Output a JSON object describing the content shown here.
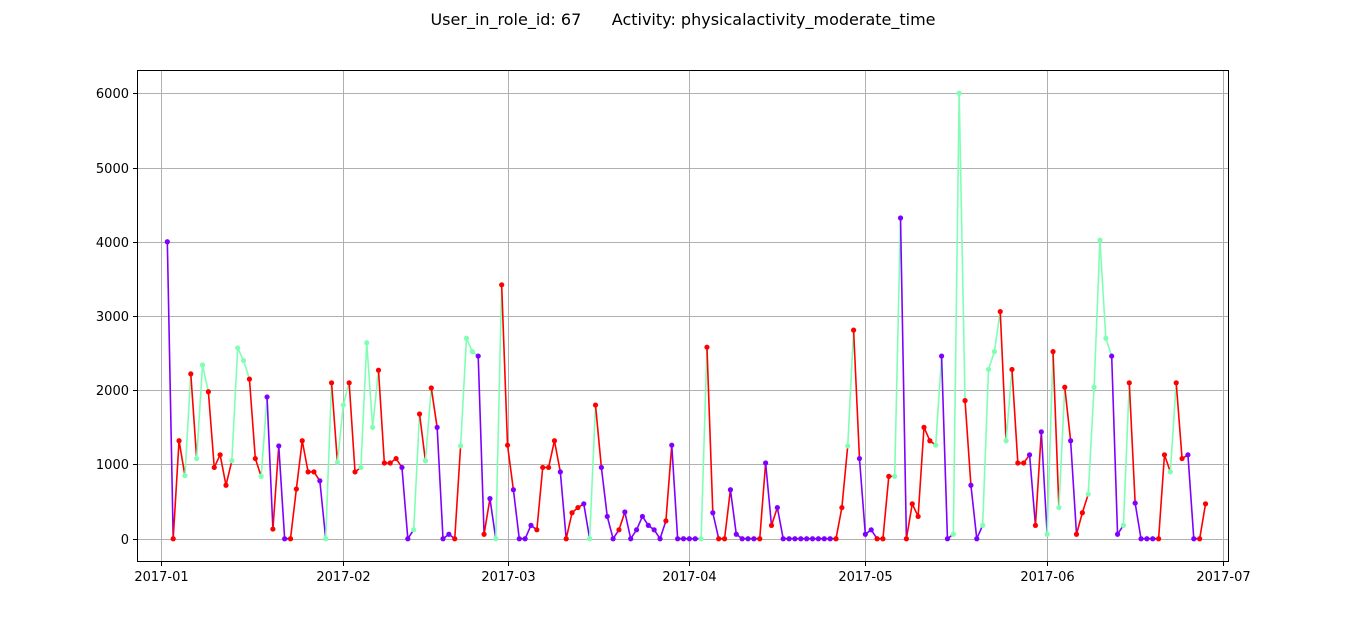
{
  "chart_data": {
    "type": "line",
    "title": "User_in_role_id: 67      Activity: physicalactivity_moderate_time",
    "xlabel": "",
    "ylabel": "",
    "grid": true,
    "xlim": [
      "2016-12-28",
      "2017-07-02"
    ],
    "ylim": [
      -300,
      6300
    ],
    "x_ticks": [
      "2017-01",
      "2017-02",
      "2017-03",
      "2017-04",
      "2017-05",
      "2017-06",
      "2017-07"
    ],
    "y_ticks": [
      0,
      1000,
      2000,
      3000,
      4000,
      5000,
      6000
    ],
    "colors": {
      "purple": "#8000ff",
      "red": "#ff0000",
      "green": "#80ffb4",
      "grid": "#b0b0b0"
    },
    "points": [
      {
        "x": "2017-01-02",
        "y": 4000,
        "c": "purple"
      },
      {
        "x": "2017-01-03",
        "y": 0,
        "c": "red"
      },
      {
        "x": "2017-01-04",
        "y": 1320,
        "c": "red"
      },
      {
        "x": "2017-01-05",
        "y": 850,
        "c": "green"
      },
      {
        "x": "2017-01-06",
        "y": 2220,
        "c": "red"
      },
      {
        "x": "2017-01-07",
        "y": 1080,
        "c": "green"
      },
      {
        "x": "2017-01-08",
        "y": 2340,
        "c": "green"
      },
      {
        "x": "2017-01-09",
        "y": 1980,
        "c": "red"
      },
      {
        "x": "2017-01-10",
        "y": 960,
        "c": "red"
      },
      {
        "x": "2017-01-11",
        "y": 1130,
        "c": "red"
      },
      {
        "x": "2017-01-12",
        "y": 720,
        "c": "red"
      },
      {
        "x": "2017-01-13",
        "y": 1050,
        "c": "green"
      },
      {
        "x": "2017-01-14",
        "y": 2570,
        "c": "green"
      },
      {
        "x": "2017-01-15",
        "y": 2400,
        "c": "green"
      },
      {
        "x": "2017-01-16",
        "y": 2150,
        "c": "red"
      },
      {
        "x": "2017-01-17",
        "y": 1080,
        "c": "red"
      },
      {
        "x": "2017-01-18",
        "y": 840,
        "c": "green"
      },
      {
        "x": "2017-01-19",
        "y": 1910,
        "c": "purple"
      },
      {
        "x": "2017-01-20",
        "y": 130,
        "c": "red"
      },
      {
        "x": "2017-01-21",
        "y": 1250,
        "c": "purple"
      },
      {
        "x": "2017-01-22",
        "y": 0,
        "c": "purple"
      },
      {
        "x": "2017-01-23",
        "y": 0,
        "c": "red"
      },
      {
        "x": "2017-01-24",
        "y": 670,
        "c": "red"
      },
      {
        "x": "2017-01-25",
        "y": 1320,
        "c": "red"
      },
      {
        "x": "2017-01-26",
        "y": 900,
        "c": "red"
      },
      {
        "x": "2017-01-27",
        "y": 900,
        "c": "red"
      },
      {
        "x": "2017-01-28",
        "y": 780,
        "c": "purple"
      },
      {
        "x": "2017-01-29",
        "y": 0,
        "c": "green"
      },
      {
        "x": "2017-01-30",
        "y": 2100,
        "c": "red"
      },
      {
        "x": "2017-01-31",
        "y": 1030,
        "c": "green"
      },
      {
        "x": "2017-02-01",
        "y": 1800,
        "c": "green"
      },
      {
        "x": "2017-02-02",
        "y": 2100,
        "c": "red"
      },
      {
        "x": "2017-02-03",
        "y": 900,
        "c": "red"
      },
      {
        "x": "2017-02-04",
        "y": 960,
        "c": "green"
      },
      {
        "x": "2017-02-05",
        "y": 2640,
        "c": "green"
      },
      {
        "x": "2017-02-06",
        "y": 1500,
        "c": "green"
      },
      {
        "x": "2017-02-07",
        "y": 2270,
        "c": "red"
      },
      {
        "x": "2017-02-08",
        "y": 1020,
        "c": "red"
      },
      {
        "x": "2017-02-09",
        "y": 1020,
        "c": "red"
      },
      {
        "x": "2017-02-10",
        "y": 1080,
        "c": "red"
      },
      {
        "x": "2017-02-11",
        "y": 960,
        "c": "purple"
      },
      {
        "x": "2017-02-12",
        "y": 0,
        "c": "purple"
      },
      {
        "x": "2017-02-13",
        "y": 120,
        "c": "green"
      },
      {
        "x": "2017-02-14",
        "y": 1680,
        "c": "red"
      },
      {
        "x": "2017-02-15",
        "y": 1050,
        "c": "green"
      },
      {
        "x": "2017-02-16",
        "y": 2030,
        "c": "red"
      },
      {
        "x": "2017-02-17",
        "y": 1500,
        "c": "purple"
      },
      {
        "x": "2017-02-18",
        "y": 0,
        "c": "purple"
      },
      {
        "x": "2017-02-19",
        "y": 60,
        "c": "purple"
      },
      {
        "x": "2017-02-20",
        "y": 0,
        "c": "red"
      },
      {
        "x": "2017-02-21",
        "y": 1250,
        "c": "green"
      },
      {
        "x": "2017-02-22",
        "y": 2700,
        "c": "green"
      },
      {
        "x": "2017-02-23",
        "y": 2520,
        "c": "green"
      },
      {
        "x": "2017-02-24",
        "y": 2460,
        "c": "purple"
      },
      {
        "x": "2017-02-25",
        "y": 60,
        "c": "red"
      },
      {
        "x": "2017-02-26",
        "y": 540,
        "c": "purple"
      },
      {
        "x": "2017-02-27",
        "y": 0,
        "c": "green"
      },
      {
        "x": "2017-02-28",
        "y": 3420,
        "c": "red"
      },
      {
        "x": "2017-03-01",
        "y": 1260,
        "c": "red"
      },
      {
        "x": "2017-03-02",
        "y": 660,
        "c": "purple"
      },
      {
        "x": "2017-03-03",
        "y": 0,
        "c": "purple"
      },
      {
        "x": "2017-03-04",
        "y": 0,
        "c": "purple"
      },
      {
        "x": "2017-03-05",
        "y": 180,
        "c": "purple"
      },
      {
        "x": "2017-03-06",
        "y": 120,
        "c": "red"
      },
      {
        "x": "2017-03-07",
        "y": 960,
        "c": "red"
      },
      {
        "x": "2017-03-08",
        "y": 960,
        "c": "red"
      },
      {
        "x": "2017-03-09",
        "y": 1320,
        "c": "red"
      },
      {
        "x": "2017-03-10",
        "y": 900,
        "c": "purple"
      },
      {
        "x": "2017-03-11",
        "y": 0,
        "c": "red"
      },
      {
        "x": "2017-03-12",
        "y": 350,
        "c": "red"
      },
      {
        "x": "2017-03-13",
        "y": 420,
        "c": "red"
      },
      {
        "x": "2017-03-14",
        "y": 470,
        "c": "purple"
      },
      {
        "x": "2017-03-15",
        "y": 0,
        "c": "green"
      },
      {
        "x": "2017-03-16",
        "y": 1800,
        "c": "red"
      },
      {
        "x": "2017-03-17",
        "y": 960,
        "c": "purple"
      },
      {
        "x": "2017-03-18",
        "y": 300,
        "c": "purple"
      },
      {
        "x": "2017-03-19",
        "y": 0,
        "c": "purple"
      },
      {
        "x": "2017-03-20",
        "y": 120,
        "c": "red"
      },
      {
        "x": "2017-03-21",
        "y": 360,
        "c": "purple"
      },
      {
        "x": "2017-03-22",
        "y": 0,
        "c": "purple"
      },
      {
        "x": "2017-03-23",
        "y": 120,
        "c": "purple"
      },
      {
        "x": "2017-03-24",
        "y": 300,
        "c": "purple"
      },
      {
        "x": "2017-03-25",
        "y": 180,
        "c": "purple"
      },
      {
        "x": "2017-03-26",
        "y": 120,
        "c": "purple"
      },
      {
        "x": "2017-03-27",
        "y": 0,
        "c": "purple"
      },
      {
        "x": "2017-03-28",
        "y": 240,
        "c": "red"
      },
      {
        "x": "2017-03-29",
        "y": 1260,
        "c": "purple"
      },
      {
        "x": "2017-03-30",
        "y": 0,
        "c": "purple"
      },
      {
        "x": "2017-03-31",
        "y": 0,
        "c": "purple"
      },
      {
        "x": "2017-04-01",
        "y": 0,
        "c": "purple"
      },
      {
        "x": "2017-04-02",
        "y": 0,
        "c": "purple"
      },
      {
        "x": "2017-04-03",
        "y": 0,
        "c": "green"
      },
      {
        "x": "2017-04-04",
        "y": 2580,
        "c": "red"
      },
      {
        "x": "2017-04-05",
        "y": 350,
        "c": "purple"
      },
      {
        "x": "2017-04-06",
        "y": 0,
        "c": "red"
      },
      {
        "x": "2017-04-07",
        "y": 0,
        "c": "red"
      },
      {
        "x": "2017-04-08",
        "y": 660,
        "c": "purple"
      },
      {
        "x": "2017-04-09",
        "y": 60,
        "c": "purple"
      },
      {
        "x": "2017-04-10",
        "y": 0,
        "c": "purple"
      },
      {
        "x": "2017-04-11",
        "y": 0,
        "c": "purple"
      },
      {
        "x": "2017-04-12",
        "y": 0,
        "c": "purple"
      },
      {
        "x": "2017-04-13",
        "y": 0,
        "c": "red"
      },
      {
        "x": "2017-04-14",
        "y": 1020,
        "c": "purple"
      },
      {
        "x": "2017-04-15",
        "y": 180,
        "c": "red"
      },
      {
        "x": "2017-04-16",
        "y": 420,
        "c": "purple"
      },
      {
        "x": "2017-04-17",
        "y": 0,
        "c": "purple"
      },
      {
        "x": "2017-04-18",
        "y": 0,
        "c": "purple"
      },
      {
        "x": "2017-04-19",
        "y": 0,
        "c": "purple"
      },
      {
        "x": "2017-04-20",
        "y": 0,
        "c": "purple"
      },
      {
        "x": "2017-04-21",
        "y": 0,
        "c": "purple"
      },
      {
        "x": "2017-04-22",
        "y": 0,
        "c": "purple"
      },
      {
        "x": "2017-04-23",
        "y": 0,
        "c": "purple"
      },
      {
        "x": "2017-04-24",
        "y": 0,
        "c": "purple"
      },
      {
        "x": "2017-04-25",
        "y": 0,
        "c": "purple"
      },
      {
        "x": "2017-04-26",
        "y": 0,
        "c": "red"
      },
      {
        "x": "2017-04-27",
        "y": 420,
        "c": "red"
      },
      {
        "x": "2017-04-28",
        "y": 1250,
        "c": "green"
      },
      {
        "x": "2017-04-29",
        "y": 2810,
        "c": "red"
      },
      {
        "x": "2017-04-30",
        "y": 1080,
        "c": "purple"
      },
      {
        "x": "2017-05-01",
        "y": 60,
        "c": "purple"
      },
      {
        "x": "2017-05-02",
        "y": 120,
        "c": "purple"
      },
      {
        "x": "2017-05-03",
        "y": 0,
        "c": "red"
      },
      {
        "x": "2017-05-04",
        "y": 0,
        "c": "red"
      },
      {
        "x": "2017-05-05",
        "y": 840,
        "c": "red"
      },
      {
        "x": "2017-05-06",
        "y": 840,
        "c": "green"
      },
      {
        "x": "2017-05-07",
        "y": 4320,
        "c": "purple"
      },
      {
        "x": "2017-05-08",
        "y": 0,
        "c": "red"
      },
      {
        "x": "2017-05-09",
        "y": 470,
        "c": "red"
      },
      {
        "x": "2017-05-10",
        "y": 300,
        "c": "red"
      },
      {
        "x": "2017-05-11",
        "y": 1500,
        "c": "red"
      },
      {
        "x": "2017-05-12",
        "y": 1320,
        "c": "red"
      },
      {
        "x": "2017-05-13",
        "y": 1260,
        "c": "green"
      },
      {
        "x": "2017-05-14",
        "y": 2460,
        "c": "purple"
      },
      {
        "x": "2017-05-15",
        "y": 0,
        "c": "purple"
      },
      {
        "x": "2017-05-16",
        "y": 60,
        "c": "green"
      },
      {
        "x": "2017-05-17",
        "y": 6000,
        "c": "green"
      },
      {
        "x": "2017-05-18",
        "y": 1860,
        "c": "red"
      },
      {
        "x": "2017-05-19",
        "y": 720,
        "c": "purple"
      },
      {
        "x": "2017-05-20",
        "y": 0,
        "c": "purple"
      },
      {
        "x": "2017-05-21",
        "y": 180,
        "c": "green"
      },
      {
        "x": "2017-05-22",
        "y": 2280,
        "c": "green"
      },
      {
        "x": "2017-05-23",
        "y": 2520,
        "c": "green"
      },
      {
        "x": "2017-05-24",
        "y": 3060,
        "c": "red"
      },
      {
        "x": "2017-05-25",
        "y": 1320,
        "c": "green"
      },
      {
        "x": "2017-05-26",
        "y": 2280,
        "c": "red"
      },
      {
        "x": "2017-05-27",
        "y": 1020,
        "c": "red"
      },
      {
        "x": "2017-05-28",
        "y": 1020,
        "c": "red"
      },
      {
        "x": "2017-05-29",
        "y": 1130,
        "c": "purple"
      },
      {
        "x": "2017-05-30",
        "y": 180,
        "c": "red"
      },
      {
        "x": "2017-05-31",
        "y": 1440,
        "c": "purple"
      },
      {
        "x": "2017-06-01",
        "y": 60,
        "c": "green"
      },
      {
        "x": "2017-06-02",
        "y": 2520,
        "c": "red"
      },
      {
        "x": "2017-06-03",
        "y": 420,
        "c": "green"
      },
      {
        "x": "2017-06-04",
        "y": 2040,
        "c": "red"
      },
      {
        "x": "2017-06-05",
        "y": 1320,
        "c": "purple"
      },
      {
        "x": "2017-06-06",
        "y": 60,
        "c": "red"
      },
      {
        "x": "2017-06-07",
        "y": 350,
        "c": "red"
      },
      {
        "x": "2017-06-08",
        "y": 600,
        "c": "green"
      },
      {
        "x": "2017-06-09",
        "y": 2040,
        "c": "green"
      },
      {
        "x": "2017-06-10",
        "y": 4020,
        "c": "green"
      },
      {
        "x": "2017-06-11",
        "y": 2700,
        "c": "green"
      },
      {
        "x": "2017-06-12",
        "y": 2460,
        "c": "purple"
      },
      {
        "x": "2017-06-13",
        "y": 60,
        "c": "purple"
      },
      {
        "x": "2017-06-14",
        "y": 180,
        "c": "green"
      },
      {
        "x": "2017-06-15",
        "y": 2100,
        "c": "red"
      },
      {
        "x": "2017-06-16",
        "y": 480,
        "c": "purple"
      },
      {
        "x": "2017-06-17",
        "y": 0,
        "c": "purple"
      },
      {
        "x": "2017-06-18",
        "y": 0,
        "c": "purple"
      },
      {
        "x": "2017-06-19",
        "y": 0,
        "c": "purple"
      },
      {
        "x": "2017-06-20",
        "y": 0,
        "c": "red"
      },
      {
        "x": "2017-06-21",
        "y": 1130,
        "c": "red"
      },
      {
        "x": "2017-06-22",
        "y": 900,
        "c": "green"
      },
      {
        "x": "2017-06-23",
        "y": 2100,
        "c": "red"
      },
      {
        "x": "2017-06-24",
        "y": 1080,
        "c": "red"
      },
      {
        "x": "2017-06-25",
        "y": 1130,
        "c": "purple"
      },
      {
        "x": "2017-06-26",
        "y": 0,
        "c": "purple"
      },
      {
        "x": "2017-06-27",
        "y": 0,
        "c": "red"
      },
      {
        "x": "2017-06-28",
        "y": 470,
        "c": "red"
      }
    ]
  }
}
